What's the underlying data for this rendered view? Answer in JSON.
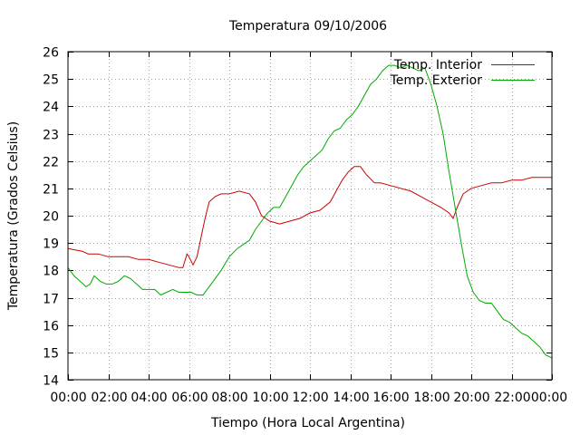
{
  "chart_data": {
    "type": "line",
    "title": "Temperatura 09/10/2006",
    "xlabel": "Tiempo (Hora Local Argentina)",
    "ylabel": "Temperatura (Grados Celsius)",
    "xlim": [
      0,
      24
    ],
    "ylim": [
      14,
      26
    ],
    "x_ticks": [
      0,
      2,
      4,
      6,
      8,
      10,
      12,
      14,
      16,
      18,
      20,
      22,
      24
    ],
    "x_tick_labels": [
      "00:00",
      "02:00",
      "04:00",
      "06:00",
      "08:00",
      "10:00",
      "12:00",
      "14:00",
      "16:00",
      "18:00",
      "20:00",
      "22:00",
      "00:00"
    ],
    "y_ticks": [
      14,
      15,
      16,
      17,
      18,
      19,
      20,
      21,
      22,
      23,
      24,
      25,
      26
    ],
    "grid": true,
    "legend_position": "top-right",
    "series": [
      {
        "name": "Temp. Interior",
        "color": "#cc0000",
        "x": [
          0,
          0.7,
          1.0,
          1.5,
          2.0,
          3.0,
          3.5,
          4.0,
          4.5,
          5.0,
          5.5,
          5.7,
          5.9,
          6.0,
          6.2,
          6.4,
          6.6,
          6.8,
          7.0,
          7.3,
          7.6,
          8.0,
          8.5,
          9.0,
          9.3,
          9.6,
          10.0,
          10.5,
          11.0,
          11.5,
          12.0,
          12.5,
          13.0,
          13.3,
          13.6,
          13.9,
          14.2,
          14.5,
          14.8,
          15.2,
          15.5,
          16.0,
          16.5,
          17.0,
          17.5,
          18.0,
          18.5,
          18.9,
          19.1,
          19.3,
          19.6,
          20.0,
          20.5,
          21.0,
          21.5,
          22.0,
          22.5,
          23.0,
          23.5,
          24.0
        ],
        "y": [
          18.8,
          18.7,
          18.6,
          18.6,
          18.5,
          18.5,
          18.4,
          18.4,
          18.3,
          18.2,
          18.1,
          18.1,
          18.6,
          18.5,
          18.2,
          18.5,
          19.2,
          19.9,
          20.5,
          20.7,
          20.8,
          20.8,
          20.9,
          20.8,
          20.5,
          20.0,
          19.8,
          19.7,
          19.8,
          19.9,
          20.1,
          20.2,
          20.5,
          20.9,
          21.3,
          21.6,
          21.8,
          21.8,
          21.5,
          21.2,
          21.2,
          21.1,
          21.0,
          20.9,
          20.7,
          20.5,
          20.3,
          20.1,
          19.9,
          20.3,
          20.8,
          21.0,
          21.1,
          21.2,
          21.2,
          21.3,
          21.3,
          21.4,
          21.4,
          21.4
        ]
      },
      {
        "name": "Temp. Exterior",
        "color": "#00aa00",
        "x": [
          0,
          0.3,
          0.6,
          0.9,
          1.1,
          1.3,
          1.6,
          1.9,
          2.2,
          2.5,
          2.8,
          3.1,
          3.4,
          3.7,
          4.0,
          4.3,
          4.6,
          4.9,
          5.2,
          5.5,
          5.8,
          6.1,
          6.4,
          6.7,
          7.0,
          7.3,
          7.6,
          8.0,
          8.4,
          8.8,
          9.0,
          9.3,
          9.6,
          9.9,
          10.2,
          10.5,
          10.8,
          11.1,
          11.4,
          11.7,
          12.0,
          12.3,
          12.6,
          12.9,
          13.2,
          13.5,
          13.8,
          14.1,
          14.4,
          14.7,
          15.0,
          15.3,
          15.6,
          15.9,
          16.2,
          16.5,
          16.8,
          17.1,
          17.4,
          17.7,
          18.0,
          18.3,
          18.6,
          18.9,
          19.2,
          19.5,
          19.8,
          20.1,
          20.4,
          20.7,
          21.0,
          21.3,
          21.6,
          21.9,
          22.2,
          22.5,
          22.8,
          23.1,
          23.4,
          23.7,
          24.0
        ],
        "y": [
          18.1,
          17.8,
          17.6,
          17.4,
          17.5,
          17.8,
          17.6,
          17.5,
          17.5,
          17.6,
          17.8,
          17.7,
          17.5,
          17.3,
          17.3,
          17.3,
          17.1,
          17.2,
          17.3,
          17.2,
          17.2,
          17.2,
          17.1,
          17.1,
          17.4,
          17.7,
          18.0,
          18.5,
          18.8,
          19.0,
          19.1,
          19.5,
          19.8,
          20.1,
          20.3,
          20.3,
          20.7,
          21.1,
          21.5,
          21.8,
          22.0,
          22.2,
          22.4,
          22.8,
          23.1,
          23.2,
          23.5,
          23.7,
          24.0,
          24.4,
          24.8,
          25.0,
          25.3,
          25.5,
          25.5,
          25.4,
          25.5,
          25.4,
          25.3,
          25.4,
          24.8,
          24.0,
          23.0,
          21.6,
          20.3,
          19.0,
          17.8,
          17.2,
          16.9,
          16.8,
          16.8,
          16.5,
          16.2,
          16.1,
          15.9,
          15.7,
          15.6,
          15.4,
          15.2,
          14.9,
          14.8
        ]
      }
    ]
  }
}
